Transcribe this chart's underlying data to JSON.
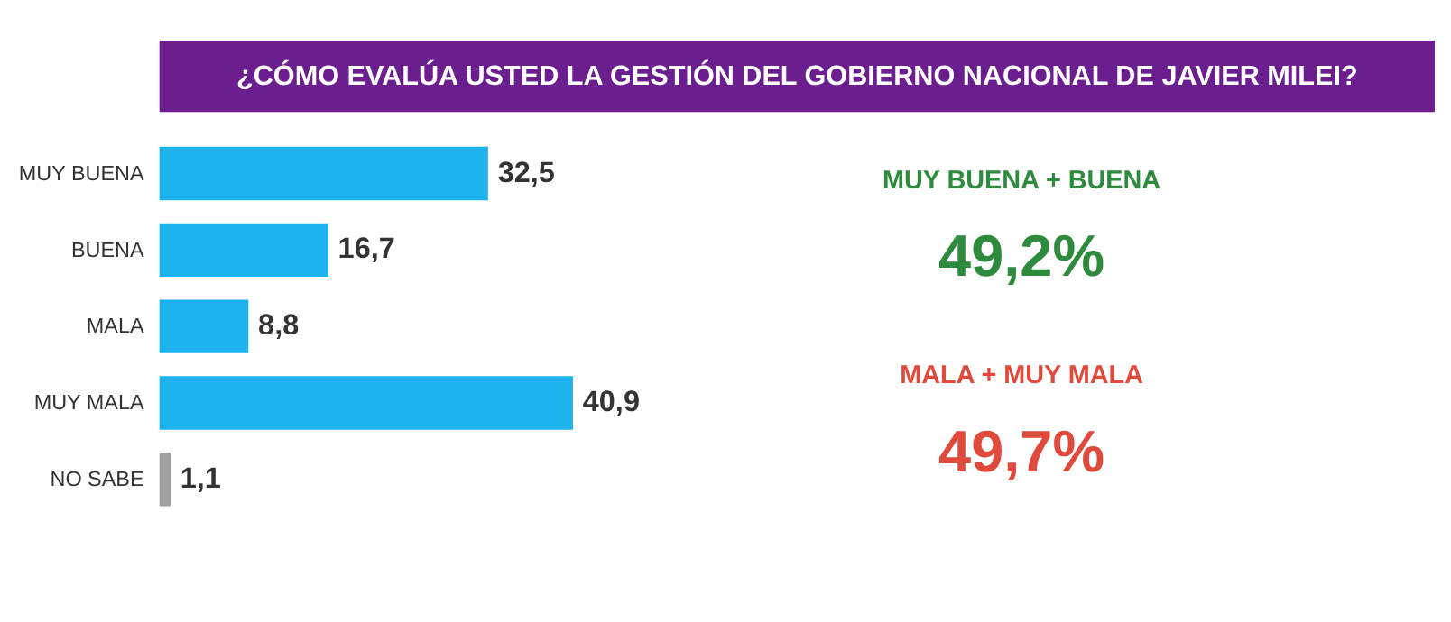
{
  "chart_data": {
    "type": "bar",
    "orientation": "horizontal",
    "title": "¿CÓMO EVALÚA USTED LA GESTIÓN DEL GOBIERNO NACIONAL DE JAVIER MILEI?",
    "categories": [
      "MUY BUENA",
      "BUENA",
      "MALA",
      "MUY MALA",
      "NO SABE"
    ],
    "values": [
      32.5,
      16.7,
      8.8,
      40.9,
      1.1
    ],
    "value_labels": [
      "32,5",
      "16,7",
      "8,8",
      "40,9",
      "1,1"
    ],
    "colors": [
      "#1eb3ee",
      "#1eb3ee",
      "#1eb3ee",
      "#1eb3ee",
      "#a0a0a0"
    ],
    "annotations": [
      "MUY BUENA + BUENA",
      "49,2%",
      "MALA + MUY MALA",
      "49,7%"
    ]
  }
}
